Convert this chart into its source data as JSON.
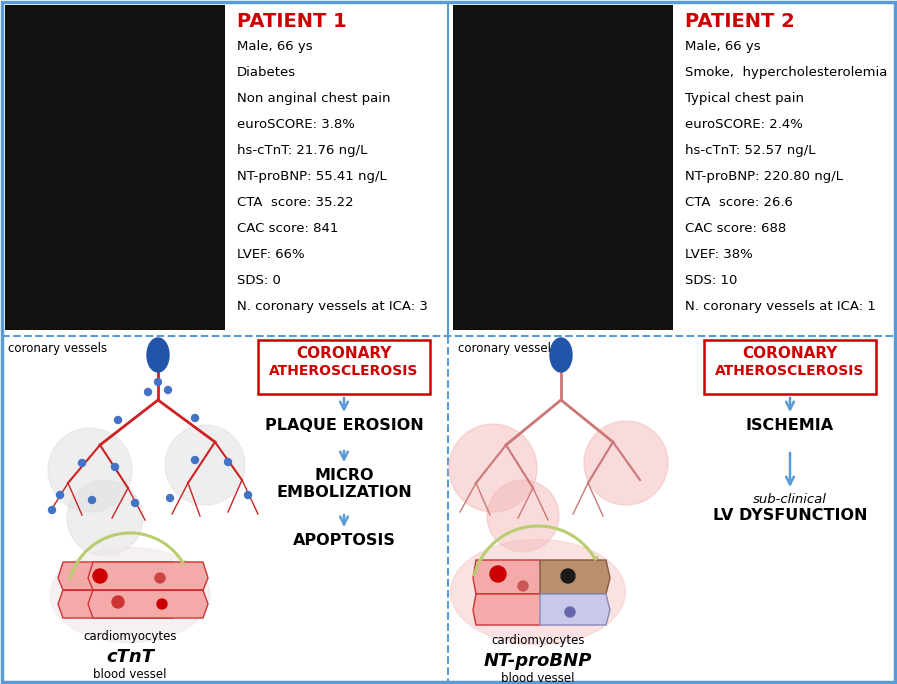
{
  "bg_color": "#ffffff",
  "border_color": "#5b9bd5",
  "divider_color": "#5b9bd5",
  "patient1": {
    "title": "PATIENT 1",
    "title_color": "#cc0000",
    "info_lines": [
      "Male, 66 ys",
      "Diabetes",
      "Non anginal chest pain",
      "euroSCORE: 3.8%",
      "hs-cTnT: 21.76 ng/L",
      "NT-proBNP: 55.41 ng/L",
      "CTA  score: 35.22",
      "CAC score: 841",
      "LVEF: 66%",
      "SDS: 0",
      "N. coronary vessels at ICA: 3"
    ],
    "pathway": [
      "CORONARY\nATHEROSCLEROSIS",
      "PLAQUE EROSION",
      "MICRO\nEMBOLIZATION",
      "APOPTOSIS"
    ],
    "biomarker": "cTnT",
    "vessel_dot_color": "#4472c4",
    "vessel_line_color": "#cc2222",
    "glow_color": "#e8e8e8"
  },
  "patient2": {
    "title": "PATIENT 2",
    "title_color": "#cc0000",
    "info_lines": [
      "Male, 66 ys",
      "Smoke,  hypercholesterolemia",
      "Typical chest pain",
      "euroSCORE: 2.4%",
      "hs-cTnT: 52.57 ng/L",
      "NT-proBNP: 220.80 ng/L",
      "CTA  score: 26.6",
      "CAC score: 688",
      "LVEF: 38%",
      "SDS: 10",
      "N. coronary vessels at ICA: 1"
    ],
    "pathway": [
      "CORONARY\nATHEROSCLEROSIS",
      "ISCHEMIA",
      "sub-clinical\nLV DYSFUNCTION"
    ],
    "biomarker": "NT-proBNP",
    "vessel_line_color": "#cc8888",
    "glow_color": "#f5c0c0"
  },
  "arrow_color": "#5b9bd5",
  "coronary_box_color": "#cc0000",
  "text_black": "#000000",
  "info_fontsize": 9.5,
  "title_fontsize": 14
}
